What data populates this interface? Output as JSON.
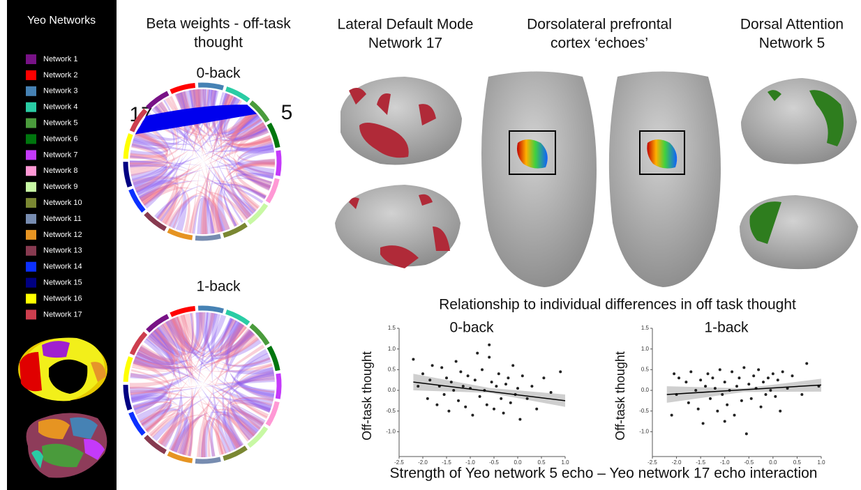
{
  "legend": {
    "title": "Yeo Networks",
    "items": [
      {
        "label": "Network 1",
        "color": "#781286"
      },
      {
        "label": "Network 2",
        "color": "#ff0000"
      },
      {
        "label": "Network 3",
        "color": "#4682b4"
      },
      {
        "label": "Network 4",
        "color": "#2acca4"
      },
      {
        "label": "Network 5",
        "color": "#4a9b3c"
      },
      {
        "label": "Network 6",
        "color": "#00760e"
      },
      {
        "label": "Network 7",
        "color": "#c43afa"
      },
      {
        "label": "Network 8",
        "color": "#ff98d5"
      },
      {
        "label": "Network 9",
        "color": "#c8f8a4"
      },
      {
        "label": "Network 10",
        "color": "#7a8732"
      },
      {
        "label": "Network 11",
        "color": "#778cb0"
      },
      {
        "label": "Network 12",
        "color": "#e69422"
      },
      {
        "label": "Network 13",
        "color": "#873a50"
      },
      {
        "label": "Network 14",
        "color": "#0c30ff"
      },
      {
        "label": "Network 15",
        "color": "#000082"
      },
      {
        "label": "Network 16",
        "color": "#ffff00"
      },
      {
        "label": "Network 17",
        "color": "#cd3e4e"
      }
    ]
  },
  "chord": {
    "title": [
      "Beta weights - off-task",
      "thought"
    ],
    "panels": [
      "0-back",
      "1-back"
    ],
    "markers": [
      "17",
      "5"
    ]
  },
  "brains": {
    "titles": [
      [
        "Lateral Default Mode",
        "Network 17"
      ],
      [
        "Dorsolateral prefrontal",
        "cortex ‘echoes’"
      ],
      [
        "Dorsal Attention",
        "Network 5"
      ]
    ]
  },
  "figure_title": "Relationship to individual differences in off task thought",
  "x_label": "Strength of Yeo network 5 echo – Yeo network 17 echo interaction",
  "chart_data": [
    {
      "type": "scatter",
      "title": "0-back",
      "y_label": "Off-task thought",
      "color": "#222222",
      "xlim": [
        -2.5,
        1.0
      ],
      "ylim": [
        -1.6,
        1.5
      ],
      "xticks": [
        -2.5,
        {
          "value": -2.0,
          "label": "-2.0"
        },
        -1.5,
        {
          "value": -1.0,
          "label": "-1.0"
        },
        -0.5,
        {
          "value": 0.0,
          "label": "0.0"
        },
        0.5,
        {
          "value": 1.0,
          "label": "1.0"
        }
      ],
      "yticks": [
        {
          "value": -1.0,
          "label": "-1.0"
        },
        -0.5,
        {
          "value": 0.0,
          "label": "0.0"
        },
        0.5,
        {
          "value": 1.0,
          "label": "1.0"
        },
        1.5
      ],
      "x": [
        -2.2,
        -2.1,
        -2.0,
        -1.9,
        -1.85,
        -1.8,
        -1.7,
        -1.65,
        -1.6,
        -1.55,
        -1.5,
        -1.45,
        -1.4,
        -1.35,
        -1.3,
        -1.25,
        -1.2,
        -1.15,
        -1.1,
        -1.05,
        -1.0,
        -0.95,
        -0.9,
        -0.85,
        -0.8,
        -0.75,
        -0.7,
        -0.65,
        -0.6,
        -0.55,
        -0.5,
        -0.45,
        -0.4,
        -0.35,
        -0.3,
        -0.25,
        -0.2,
        -0.15,
        -0.1,
        -0.05,
        0.0,
        0.05,
        0.1,
        0.2,
        0.3,
        0.4,
        0.55,
        0.7,
        0.9,
        -0.6
      ],
      "y": [
        0.75,
        0.1,
        0.4,
        -0.2,
        0.25,
        0.6,
        -0.35,
        0.1,
        0.55,
        -0.1,
        0.3,
        -0.5,
        0.2,
        0.0,
        0.7,
        -0.25,
        0.45,
        0.1,
        -0.4,
        0.35,
        0.05,
        -0.6,
        0.25,
        0.9,
        -0.15,
        0.5,
        0.0,
        -0.35,
        1.1,
        0.2,
        -0.45,
        0.1,
        0.4,
        -0.2,
        -0.55,
        0.15,
        0.3,
        -0.3,
        0.6,
        -0.1,
        0.05,
        -0.7,
        0.35,
        -0.2,
        0.1,
        -0.45,
        0.3,
        -0.05,
        0.45,
        0.8
      ],
      "fit": {
        "x": [
          -2.2,
          1.0
        ],
        "y": [
          0.2,
          -0.25
        ]
      },
      "band": {
        "x": [
          -2.2,
          -0.6,
          1.0
        ],
        "lower": [
          0.0,
          -0.06,
          -0.4
        ],
        "upper": [
          0.4,
          0.06,
          -0.1
        ]
      }
    },
    {
      "type": "scatter",
      "title": "1-back",
      "y_label": "Off-task thought",
      "color": "#222222",
      "xlim": [
        -2.5,
        1.0
      ],
      "ylim": [
        -1.6,
        1.5
      ],
      "xticks": [
        -2.5,
        {
          "value": -2.0,
          "label": "-2.0"
        },
        -1.5,
        {
          "value": -1.0,
          "label": "-1.0"
        },
        -0.5,
        {
          "value": 0.0,
          "label": "0.0"
        },
        0.5,
        {
          "value": 1.0,
          "label": "1.0"
        }
      ],
      "yticks": [
        {
          "value": -1.0,
          "label": "-1.0"
        },
        -0.5,
        {
          "value": 0.0,
          "label": "0.0"
        },
        0.5,
        {
          "value": 1.0,
          "label": "1.0"
        },
        1.5
      ],
      "x": [
        -2.1,
        -2.05,
        -2.0,
        -1.95,
        -1.8,
        -1.75,
        -1.7,
        -1.6,
        -1.55,
        -1.5,
        -1.45,
        -1.4,
        -1.35,
        -1.3,
        -1.25,
        -1.2,
        -1.15,
        -1.1,
        -1.05,
        -1.0,
        -0.95,
        -0.9,
        -0.85,
        -0.8,
        -0.75,
        -0.7,
        -0.65,
        -0.6,
        -0.55,
        -0.5,
        -0.45,
        -0.4,
        -0.35,
        -0.3,
        -0.25,
        -0.2,
        -0.15,
        -0.1,
        -0.05,
        0.0,
        0.05,
        0.1,
        0.15,
        0.2,
        0.3,
        0.4,
        0.6,
        0.7,
        0.95,
        -1.0
      ],
      "y": [
        -0.6,
        0.4,
        -0.1,
        0.3,
        0.2,
        -0.3,
        0.45,
        0.0,
        -0.45,
        0.25,
        -0.8,
        0.1,
        0.4,
        -0.2,
        0.3,
        0.05,
        -0.5,
        0.5,
        -0.1,
        0.2,
        -0.35,
        0.0,
        0.45,
        -0.6,
        0.1,
        0.3,
        -0.25,
        0.55,
        -1.05,
        0.15,
        -0.2,
        0.35,
        0.05,
        0.5,
        -0.4,
        0.2,
        -0.1,
        0.3,
        0.0,
        0.4,
        -0.15,
        0.25,
        -0.5,
        0.45,
        0.05,
        0.35,
        -0.1,
        0.65,
        0.1,
        -0.75
      ],
      "fit": {
        "x": [
          -2.2,
          1.0
        ],
        "y": [
          -0.1,
          0.13
        ]
      },
      "band": {
        "x": [
          -2.2,
          -0.6,
          1.0
        ],
        "lower": [
          -0.3,
          -0.04,
          -0.03
        ],
        "upper": [
          0.1,
          0.05,
          0.28
        ]
      }
    }
  ]
}
